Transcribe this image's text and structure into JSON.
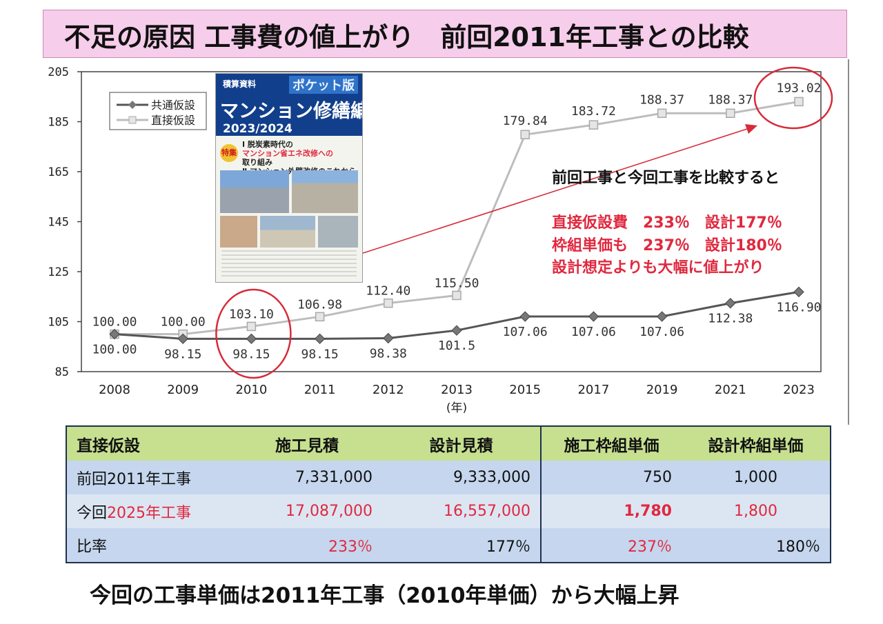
{
  "title": "不足の原因 工事費の値上がり　前回2011年工事との比較",
  "chart_data": {
    "type": "line",
    "categories": [
      "2008",
      "2009",
      "2010",
      "2011",
      "2012",
      "2013",
      "2015",
      "2017",
      "2019",
      "2021",
      "2023"
    ],
    "series": [
      {
        "name": "共通仮設",
        "values": [
          100.0,
          98.15,
          98.15,
          98.15,
          98.38,
          101.5,
          107.06,
          107.06,
          107.06,
          112.38,
          116.9
        ],
        "labels": [
          "100.00",
          "98.15",
          "98.15",
          "98.15",
          "98.38",
          "101.5",
          "107.06",
          "107.06",
          "107.06",
          "112.38",
          "116.90"
        ],
        "color": "#555555"
      },
      {
        "name": "直接仮設",
        "values": [
          100.0,
          100.0,
          103.1,
          106.98,
          112.4,
          115.5,
          179.84,
          183.72,
          188.37,
          188.37,
          193.02
        ],
        "labels": [
          "100.00",
          "100.00",
          "103.10",
          "106.98",
          "112.40",
          "115.50",
          "179.84",
          "183.72",
          "188.37",
          "188.37",
          "193.02"
        ],
        "color": "#bdbdbd"
      }
    ],
    "yticks": [
      "205",
      "185",
      "165",
      "145",
      "125",
      "105",
      "85"
    ],
    "ylim": [
      85,
      205
    ],
    "xlabel": "(年)",
    "legend": [
      "共通仮設",
      "直接仮設"
    ],
    "highlight_years": [
      "2010",
      "2023"
    ]
  },
  "book_cover": {
    "l1": "積算資料",
    "l2": "ポケット版",
    "l3": "マンション修繕編",
    "l4": "2023/2024",
    "badge": "特集",
    "f1": "Ⅰ 脱炭素時代の",
    "f2": "マンション省エネ改修への",
    "f3": "取り組み",
    "f4": "Ⅱ マンション外壁改修のこれから"
  },
  "notes": {
    "intro": "前回工事と今回工事を比較すると",
    "line1": "直接仮設費　233％　設計177％",
    "line2": "枠組単価も　237％　設計180％",
    "line3": "設計想定よりも大幅に値上がり"
  },
  "table": {
    "headers": [
      "直接仮設",
      "施工見積",
      "設計見積",
      "施工枠組単価",
      "設計枠組単価"
    ],
    "row1": {
      "label": "前回2011年工事",
      "c1": "7,331,000",
      "c2": "9,333,000",
      "c3": "750",
      "c4": "1,000"
    },
    "row2": {
      "label_a": "今回",
      "label_b": "2025年工事",
      "c1": "17,087,000",
      "c2": "16,557,000",
      "c3": "1,780",
      "c4": "1,800"
    },
    "row3": {
      "label": "比率",
      "c1": "233％",
      "c2": "177％",
      "c3": "237％",
      "c4": "180％"
    }
  },
  "bottom_text": "今回の工事単価は2011年工事（2010年単価）から大幅上昇",
  "colors": {
    "title_bg": "#f6cdea",
    "accent_red": "#e0283e",
    "table_header": "#c6e08f",
    "table_row": "#c5d6ee"
  }
}
